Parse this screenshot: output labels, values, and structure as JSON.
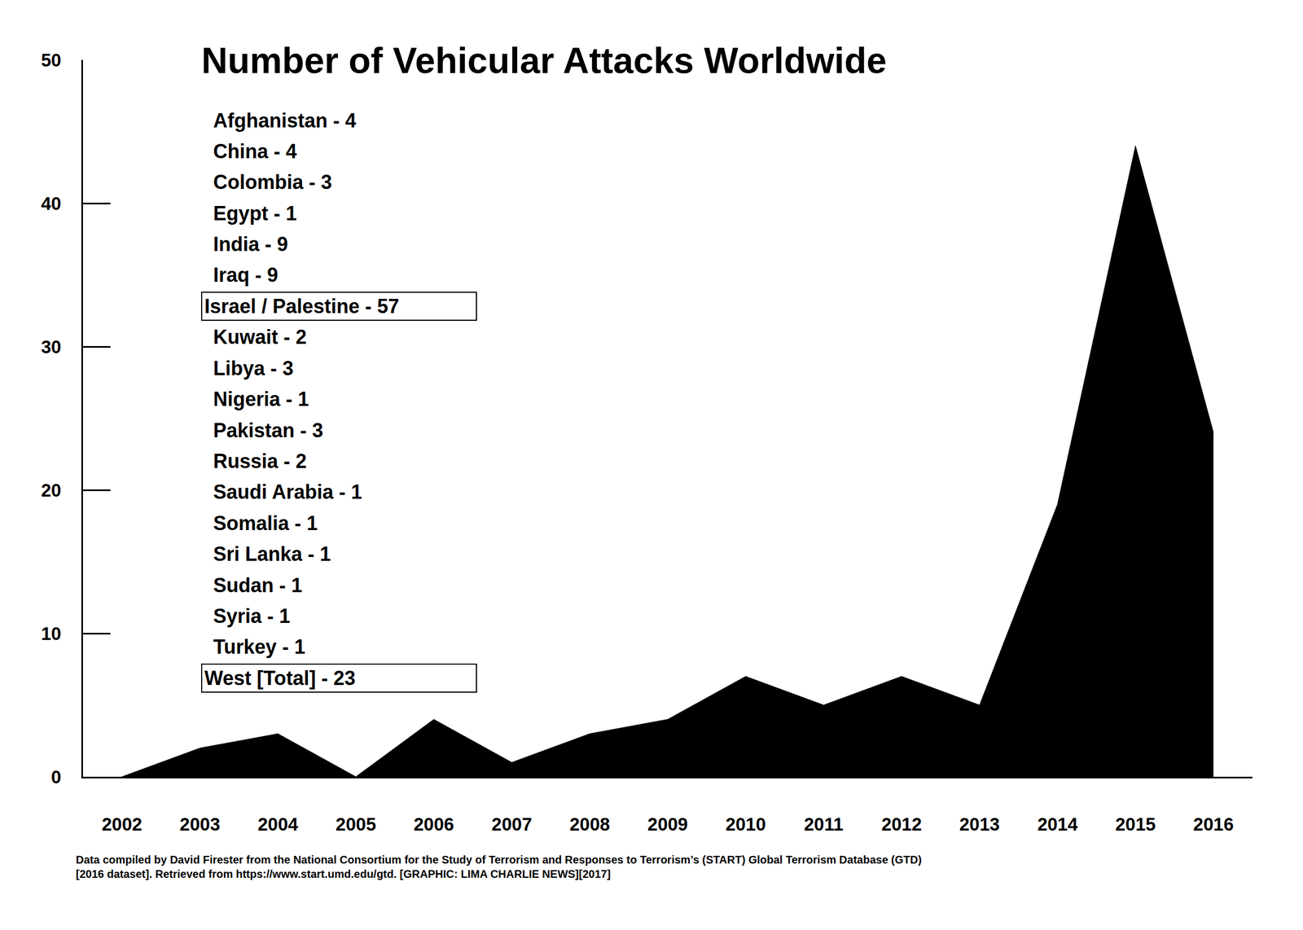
{
  "chart_data": {
    "type": "area",
    "title": "Number of Vehicular Attacks Worldwide",
    "annotations": [
      "Afghanistan - 4",
      "China - 4",
      "Colombia - 3",
      "Egypt - 1",
      "India - 9",
      "Iraq - 9",
      "Israel / Palestine - 57",
      "Kuwait - 2",
      "Libya - 3",
      "Nigeria - 1",
      "Pakistan - 3",
      "Russia - 2",
      "Saudi Arabia - 1",
      "Somalia - 1",
      "Sri Lanka - 1",
      "Sudan - 1",
      "Syria - 1",
      "Turkey - 1",
      "West [Total] - 23"
    ],
    "source": [
      "Data compiled by David Firester from the National Consortium for the Study of Terrorism and Responses to Terrorism’s (START) Global Terrorism Database (GTD)",
      "[2016 dataset]. Retrieved from https://www.start.umd.edu/gtd. [GRAPHIC: LIMA CHARLIE NEWS][2017]"
    ],
    "x": [
      2002,
      2003,
      2004,
      2005,
      2006,
      2007,
      2008,
      2009,
      2010,
      2011,
      2012,
      2013,
      2014,
      2015,
      2016
    ],
    "values": [
      0,
      2,
      3,
      0,
      4,
      1,
      3,
      4,
      7,
      5,
      7,
      5,
      19,
      44,
      24
    ],
    "color": "#000000",
    "xlim": [
      2001.5,
      2016.5
    ],
    "xticks": [
      2002,
      2003,
      2004,
      2005,
      2006,
      2007,
      2008,
      2009,
      2010,
      2011,
      2012,
      2013,
      2014,
      2015,
      2016
    ],
    "ylim": [
      0,
      50
    ],
    "yticks": [
      0,
      10,
      20,
      30,
      40,
      50
    ],
    "grid": false
  }
}
